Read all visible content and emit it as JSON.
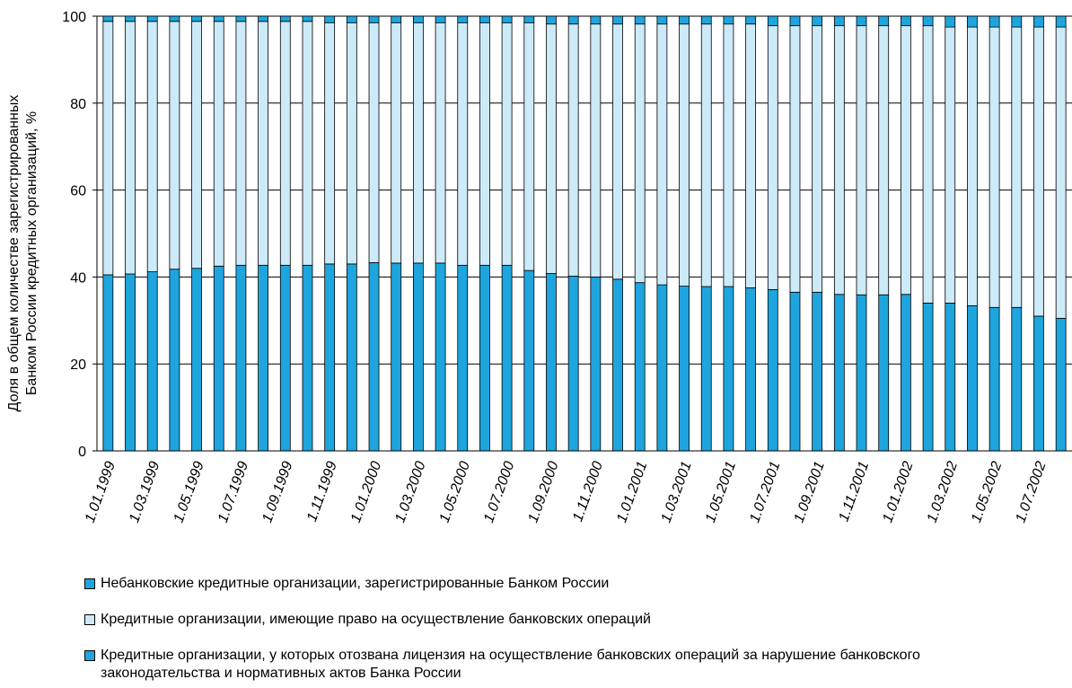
{
  "chart_data": {
    "type": "stacked-bar",
    "y_axis_label": "Доля в общем количестве зарегистрированных Банком России кредитных организаций, %",
    "categories": [
      "1.01.1999",
      null,
      "1.03.1999",
      null,
      "1.05.1999",
      null,
      "1.07.1999",
      null,
      "1.09.1999",
      null,
      "1.11.1999",
      null,
      "1.01.2000",
      null,
      "1.03.2000",
      null,
      "1.05.2000",
      null,
      "1.07.2000",
      null,
      "1.09.2000",
      null,
      "1.11.2000",
      null,
      "1.01.2001",
      null,
      "1.03.2001",
      null,
      "1.05.2001",
      null,
      "1.07.2001",
      null,
      "1.09.2001",
      null,
      "1.11.2001",
      null,
      "1.01.2002",
      null,
      "1.03.2002",
      null,
      "1.05.2002",
      null,
      "1.07.2002",
      null
    ],
    "series": [
      {
        "name": "Небанковские кредитные организации, зарегистрированные Банком России",
        "color": "#1ea5de",
        "values": [
          1.2,
          1.2,
          1.2,
          1.2,
          1.2,
          1.2,
          1.2,
          1.2,
          1.2,
          1.2,
          1.5,
          1.5,
          1.5,
          1.5,
          1.5,
          1.5,
          1.5,
          1.5,
          1.5,
          1.5,
          1.8,
          1.8,
          1.8,
          1.8,
          1.8,
          1.8,
          1.8,
          1.8,
          1.8,
          1.8,
          2.2,
          2.2,
          2.2,
          2.2,
          2.2,
          2.2,
          2.2,
          2.2,
          2.5,
          2.5,
          2.5,
          2.5,
          2.5,
          2.5
        ]
      },
      {
        "name": "Кредитные организации, имеющие право на осуществление банковских операций",
        "color": "#cdeaf8",
        "values": [
          58.3,
          58.1,
          57.6,
          57.0,
          56.8,
          56.3,
          56.1,
          56.1,
          56.1,
          56.1,
          55.5,
          55.5,
          55.2,
          55.3,
          55.3,
          55.3,
          55.8,
          55.8,
          55.8,
          57.0,
          57.4,
          58.0,
          58.2,
          58.7,
          59.5,
          60.0,
          60.3,
          60.4,
          60.4,
          60.7,
          60.7,
          61.3,
          61.3,
          61.8,
          61.9,
          61.9,
          61.8,
          63.8,
          63.5,
          64.1,
          64.5,
          64.5,
          66.5,
          67.0
        ]
      },
      {
        "name": "Кредитные организации, у которых отозвана лицензия на осуществление банковских операций за нарушение банковского законодательства и нормативных актов Банка России",
        "color": "#1ea5de",
        "values": [
          40.5,
          40.7,
          41.2,
          41.8,
          42,
          42.5,
          42.7,
          42.7,
          42.7,
          42.7,
          43,
          43,
          43.3,
          43.2,
          43.2,
          43.2,
          42.7,
          42.7,
          42.7,
          41.5,
          40.8,
          40.2,
          40,
          39.5,
          38.7,
          38.2,
          37.9,
          37.8,
          37.8,
          37.5,
          37.1,
          36.5,
          36.5,
          36,
          35.9,
          35.9,
          36,
          34,
          34,
          33.4,
          33,
          33,
          31,
          30.5
        ]
      }
    ],
    "stack_order": [
      2,
      1,
      0
    ],
    "ylim": [
      0,
      100
    ],
    "yticks": [
      0,
      20,
      40,
      60,
      80,
      100
    ],
    "grid": true
  }
}
